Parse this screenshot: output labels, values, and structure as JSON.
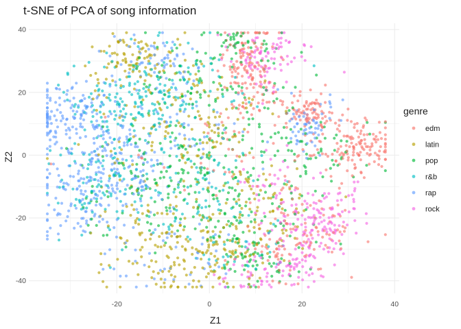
{
  "chart_data": {
    "type": "scatter",
    "title": "t-SNE of PCA of song information",
    "xlabel": "Z1",
    "ylabel": "Z2",
    "xlim": [
      -39,
      41
    ],
    "ylim": [
      -44,
      42
    ],
    "x_ticks": [
      -20,
      0,
      20,
      40
    ],
    "y_ticks": [
      -40,
      -20,
      0,
      20,
      40
    ],
    "x_tick_labels": [
      "-20",
      "0",
      "20",
      "40"
    ],
    "y_tick_labels": [
      "-40",
      "-20",
      "0",
      "20",
      "40"
    ],
    "grid": true,
    "legend": {
      "title": "genre",
      "position": "right"
    },
    "series": [
      {
        "name": "edm",
        "color": "#F8766D",
        "clusters": [
          [
            8,
            30,
            3,
            6,
            110
          ],
          [
            22,
            14,
            3,
            3,
            90
          ],
          [
            30,
            0,
            5,
            4,
            90
          ],
          [
            20,
            -23,
            6,
            6,
            70
          ],
          [
            6,
            4,
            10,
            8,
            60
          ],
          [
            14,
            -30,
            6,
            6,
            40
          ],
          [
            32,
            6,
            4,
            3,
            40
          ],
          [
            10,
            20,
            3,
            4,
            25
          ]
        ]
      },
      {
        "name": "latin",
        "color": "#B79F00",
        "clusters": [
          [
            -16,
            30,
            6,
            5,
            100
          ],
          [
            2,
            -30,
            8,
            7,
            120
          ],
          [
            -8,
            5,
            10,
            8,
            80
          ],
          [
            12,
            -15,
            7,
            6,
            60
          ],
          [
            -12,
            -25,
            8,
            8,
            60
          ],
          [
            0,
            15,
            8,
            8,
            50
          ],
          [
            -8,
            -35,
            6,
            4,
            40
          ]
        ]
      },
      {
        "name": "pop",
        "color": "#00BA38",
        "clusters": [
          [
            -6,
            -2,
            8,
            7,
            100
          ],
          [
            6,
            -20,
            8,
            8,
            110
          ],
          [
            -2,
            25,
            8,
            8,
            80
          ],
          [
            12,
            -35,
            5,
            4,
            40
          ],
          [
            14,
            10,
            6,
            8,
            50
          ],
          [
            -14,
            -15,
            8,
            8,
            50
          ],
          [
            26,
            0,
            6,
            6,
            40
          ],
          [
            6,
            36,
            4,
            2,
            30
          ]
        ]
      },
      {
        "name": "r&b",
        "color": "#00BFC4",
        "clusters": [
          [
            -20,
            18,
            6,
            6,
            90
          ],
          [
            -8,
            22,
            8,
            8,
            80
          ],
          [
            -20,
            -15,
            7,
            7,
            60
          ],
          [
            0,
            -10,
            8,
            8,
            60
          ],
          [
            -14,
            10,
            6,
            5,
            50
          ],
          [
            6,
            -30,
            6,
            6,
            40
          ],
          [
            -26,
            -5,
            5,
            6,
            40
          ]
        ]
      },
      {
        "name": "rap",
        "color": "#619CFF",
        "clusters": [
          [
            -30,
            13,
            5,
            6,
            140
          ],
          [
            -28,
            -12,
            5,
            8,
            120
          ],
          [
            -17,
            -7,
            5,
            6,
            80
          ],
          [
            -12,
            30,
            6,
            5,
            60
          ],
          [
            22,
            10,
            3,
            4,
            60
          ],
          [
            -10,
            -32,
            6,
            6,
            50
          ],
          [
            -4,
            10,
            8,
            8,
            50
          ],
          [
            -20,
            2,
            6,
            4,
            40
          ]
        ]
      },
      {
        "name": "rock",
        "color": "#F564E3",
        "clusters": [
          [
            12,
            31,
            4,
            5,
            90
          ],
          [
            22,
            -24,
            5,
            6,
            100
          ],
          [
            16,
            -37,
            5,
            3,
            50
          ],
          [
            26,
            -18,
            4,
            5,
            50
          ],
          [
            6,
            -40,
            3,
            2,
            20
          ],
          [
            14,
            -8,
            4,
            5,
            30
          ]
        ]
      }
    ]
  }
}
